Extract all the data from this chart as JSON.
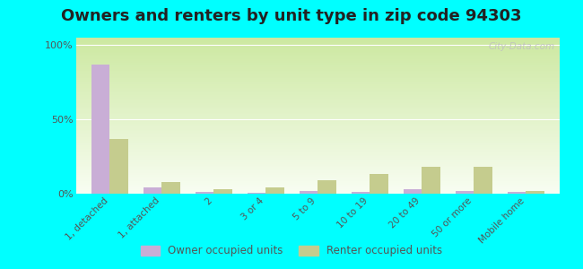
{
  "title": "Owners and renters by unit type in zip code 94303",
  "categories": [
    "1, detached",
    "1, attached",
    "2",
    "3 or 4",
    "5 to 9",
    "10 to 19",
    "20 to 49",
    "50 or more",
    "Mobile home"
  ],
  "owner_values": [
    87,
    4,
    1,
    0.5,
    2,
    1,
    3,
    2,
    1
  ],
  "renter_values": [
    37,
    8,
    3,
    4,
    9,
    13,
    18,
    18,
    2
  ],
  "owner_color": "#c9aed6",
  "renter_color": "#c5cc8e",
  "background_color": "#00FFFF",
  "grad_top_left": "#d4e8b0",
  "grad_bottom_right": "#f5faf0",
  "yticks": [
    0,
    50,
    100
  ],
  "ylim": [
    0,
    105
  ],
  "bar_width": 0.35,
  "legend_owner": "Owner occupied units",
  "legend_renter": "Renter occupied units",
  "watermark": "City-Data.com",
  "title_fontsize": 13
}
